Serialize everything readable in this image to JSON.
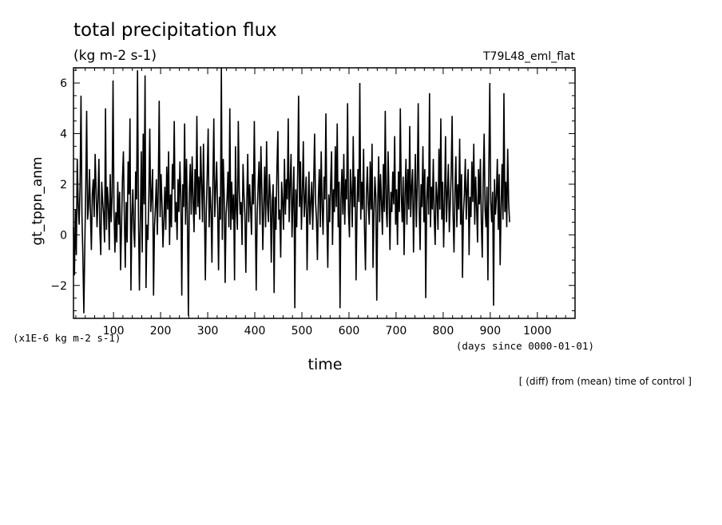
{
  "chart_data": {
    "type": "line",
    "title": "total precipitation flux",
    "subtitle": "(kg m-2 s-1)",
    "experiment_label": "T79L48_eml_flat",
    "ylabel": "gt_tppn_anm",
    "y_unit_label": "(x1E-6 kg m-2 s-1)",
    "xlabel": "time",
    "x_unit_label": "(days since 0000-01-01)",
    "footnote": "[ (diff) from (mean) time of control ]",
    "xlim": [
      15,
      1080
    ],
    "ylim": [
      -3.3,
      6.6
    ],
    "x_ticks": [
      100,
      200,
      300,
      400,
      500,
      600,
      700,
      800,
      900,
      1000
    ],
    "y_ticks": [
      -2,
      0,
      2,
      4,
      6
    ],
    "grid": false,
    "line_color": "#000000",
    "series": [
      {
        "x_start": 15,
        "x_step": 2,
        "values": [
          0.3,
          -1.6,
          1.0,
          -0.8,
          3.0,
          1.2,
          0.4,
          2.0,
          5.5,
          0.8,
          -0.9,
          -3.1,
          -0.5,
          1.8,
          4.9,
          0.6,
          1.1,
          2.6,
          0.9,
          -0.6,
          1.6,
          2.2,
          0.7,
          3.2,
          1.8,
          0.3,
          1.4,
          3.0,
          0.2,
          -0.8,
          2.1,
          1.3,
          0.8,
          -0.3,
          5.0,
          0.2,
          1.9,
          1.2,
          -0.6,
          2.4,
          0.5,
          1.5,
          6.1,
          1.0,
          -0.7,
          0.9,
          -0.3,
          2.1,
          0.4,
          1.7,
          -1.4,
          0.3,
          2.2,
          3.3,
          0.8,
          -1.3,
          1.3,
          -0.3,
          2.9,
          1.6,
          4.6,
          -2.2,
          0.7,
          1.8,
          0.2,
          -0.5,
          2.5,
          1.4,
          6.5,
          0.8,
          -2.2,
          0.5,
          3.3,
          -0.7,
          4.0,
          1.2,
          6.3,
          -2.1,
          0.4,
          -0.2,
          1.5,
          4.2,
          0.9,
          1.6,
          2.6,
          -2.4,
          0.3,
          1.1,
          2.2,
          0.0,
          1.8,
          5.3,
          0.7,
          2.4,
          1.2,
          -0.5,
          0.6,
          1.9,
          0.2,
          2.7,
          1.0,
          3.3,
          -0.4,
          1.6,
          0.3,
          2.8,
          1.8,
          4.5,
          0.5,
          1.3,
          -0.2,
          2.2,
          0.9,
          2.9,
          1.5,
          -2.4,
          2.0,
          1.1,
          4.4,
          0.4,
          3.0,
          0.6,
          -3.2,
          1.7,
          2.8,
          0.8,
          3.1,
          1.4,
          0.1,
          2.6,
          0.8,
          4.7,
          1.1,
          2.3,
          0.6,
          3.5,
          2.0,
          0.5,
          3.6,
          1.2,
          -1.8,
          0.9,
          2.4,
          4.2,
          0.3,
          1.9,
          1.0,
          -1.1,
          2.0,
          4.6,
          0.7,
          1.8,
          2.9,
          1.1,
          -1.4,
          1.5,
          0.6,
          6.6,
          -0.2,
          3.0,
          1.6,
          -1.9,
          0.8,
          1.4,
          2.5,
          0.3,
          5.0,
          0.2,
          2.1,
          0.6,
          1.6,
          -1.8,
          3.5,
          1.0,
          0.2,
          4.5,
          1.7,
          0.8,
          1.3,
          -0.4,
          2.8,
          1.6,
          0.8,
          -1.5,
          1.3,
          3.2,
          0.5,
          2.0,
          1.1,
          0.0,
          2.4,
          1.2,
          4.5,
          1.0,
          -2.2,
          0.8,
          1.9,
          2.9,
          0.4,
          3.5,
          1.8,
          -0.6,
          1.2,
          2.7,
          0.3,
          3.7,
          1.2,
          0.5,
          2.4,
          1.5,
          -1.1,
          1.3,
          2.0,
          -2.3,
          1.5,
          0.2,
          2.6,
          4.1,
          0.6,
          1.0,
          -0.9,
          2.1,
          1.3,
          0.2,
          3.0,
          0.8,
          2.2,
          1.4,
          4.6,
          0.5,
          2.0,
          3.2,
          -0.1,
          1.4,
          2.7,
          -2.9,
          1.8,
          0.3,
          2.4,
          5.5,
          1.1,
          2.9,
          0.2,
          1.6,
          3.7,
          0.7,
          1.4,
          2.3,
          -1.4,
          1.0,
          2.5,
          0.4,
          1.3,
          2.1,
          0.2,
          2.0,
          4.0,
          1.3,
          0.6,
          -1.0,
          1.5,
          2.6,
          0.3,
          3.3,
          1.1,
          0.0,
          2.3,
          1.4,
          4.8,
          0.7,
          -1.3,
          1.6,
          0.5,
          2.0,
          3.3,
          -0.4,
          1.8,
          0.9,
          3.5,
          1.1,
          4.4,
          0.3,
          2.1,
          -2.9,
          1.4,
          2.6,
          0.8,
          3.2,
          0.4,
          2.2,
          1.4,
          5.2,
          0.9,
          -0.1,
          2.6,
          1.7,
          0.3,
          3.9,
          1.1,
          2.3,
          -1.8,
          0.9,
          2.6,
          1.3,
          6.0,
          0.6,
          2.1,
          1.0,
          3.4,
          0.2,
          -1.4,
          1.6,
          2.7,
          1.2,
          0.4,
          2.9,
          1.0,
          3.6,
          -1.3,
          0.8,
          2.3,
          1.5,
          -2.6,
          1.2,
          3.1,
          0.5,
          2.4,
          1.3,
          0.0,
          2.8,
          0.9,
          4.9,
          1.1,
          0.3,
          3.3,
          1.6,
          -0.6,
          1.7,
          0.9,
          2.5,
          1.2,
          3.9,
          0.4,
          1.8,
          -0.4,
          2.5,
          0.9,
          5.0,
          1.6,
          0.5,
          2.3,
          -0.8,
          1.6,
          3.0,
          0.4,
          2.6,
          1.0,
          4.3,
          0.7,
          1.9,
          2.6,
          -0.7,
          1.5,
          3.2,
          0.3,
          1.9,
          5.2,
          1.2,
          -0.6,
          2.0,
          1.1,
          3.5,
          0.5,
          2.6,
          -2.5,
          1.4,
          2.3,
          0.8,
          5.6,
          0.3,
          1.9,
          1.0,
          3.0,
          0.7,
          -0.4,
          2.1,
          1.5,
          0.2,
          3.4,
          1.0,
          4.6,
          0.6,
          2.1,
          -0.5,
          1.4,
          3.9,
          0.5,
          1.6,
          2.8,
          0.1,
          1.2,
          2.4,
          4.7,
          0.8,
          -0.7,
          1.7,
          3.1,
          0.3,
          2.0,
          1.0,
          3.8,
          0.4,
          2.4,
          -1.7,
          0.9,
          1.6,
          3.0,
          0.6,
          1.8,
          2.6,
          -0.8,
          1.5,
          0.7,
          2.9,
          1.3,
          3.6,
          0.4,
          2.3,
          1.1,
          -0.3,
          2.6,
          1.2,
          3.0,
          0.5,
          -0.9,
          2.1,
          4.0,
          1.0,
          0.3,
          1.9,
          -1.8,
          2.7,
          6.0,
          1.3,
          0.5,
          1.7,
          -2.8,
          2.2,
          0.8,
          1.5,
          3.0,
          0.2,
          2.4,
          -1.2,
          1.1,
          2.8,
          0.6,
          5.6,
          0.9,
          2.1,
          0.3,
          3.4,
          1.3,
          0.5
        ]
      }
    ]
  }
}
